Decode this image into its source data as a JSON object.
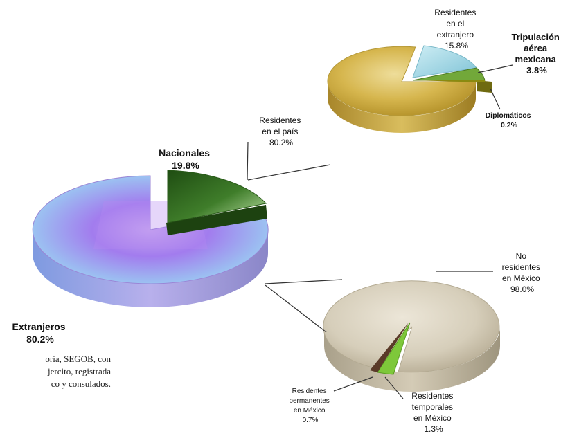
{
  "chart_data": [
    {
      "type": "pie",
      "labels": [
        "Extranjeros",
        "Nacionales"
      ],
      "values": [
        80.2,
        19.8
      ],
      "value_labels": [
        "80.2%",
        "19.8%"
      ],
      "colors": [
        "#a07ee8",
        "#2e6a1e"
      ],
      "exploded": "Nacionales"
    },
    {
      "type": "pie",
      "labels": [
        "Residentes en el país",
        "Residentes en el extranjero",
        "Tripulación aérea mexicana",
        "Diplomáticos"
      ],
      "values": [
        80.2,
        15.8,
        3.8,
        0.2
      ],
      "value_labels": [
        "80.2%",
        "15.8%",
        "3.8%",
        "0.2%"
      ],
      "colors": [
        "#d8bb55",
        "#a9dbe8",
        "#7aa640",
        "#8a8a10"
      ]
    },
    {
      "type": "pie",
      "labels": [
        "No residentes en México",
        "Residentes temporales en México",
        "Residentes permanentes en México"
      ],
      "values": [
        98.0,
        1.3,
        0.7
      ],
      "value_labels": [
        "98.0%",
        "1.3%",
        "0.7%"
      ],
      "colors": [
        "#d9d2c2",
        "#7ec83a",
        "#5a3a28"
      ]
    }
  ],
  "label_text": {
    "extranjeros": [
      "Extranjeros",
      "80.2%"
    ],
    "nacionales": [
      "Nacionales",
      "19.8%"
    ],
    "res_pais": [
      "Residentes",
      "en el país",
      "80.2%"
    ],
    "res_ext": [
      "Residentes",
      "en el",
      "extranjero",
      "15.8%"
    ],
    "tripulacion": [
      "Tripulación",
      "aérea",
      "mexicana",
      "3.8%"
    ],
    "diplomaticos": [
      "Diplomáticos",
      "0.2%"
    ],
    "no_residentes": [
      "No",
      "residentes",
      "en México",
      "98.0%"
    ],
    "res_temp": [
      "Residentes",
      "temporales",
      "en México",
      "1.3%"
    ],
    "res_perm": [
      "Residentes",
      "permanentes",
      "en México",
      "0.7%"
    ]
  },
  "source_note": {
    "lines": [
      "oria, SEGOB, con",
      "jercito, registrada",
      "co y consulados."
    ]
  }
}
